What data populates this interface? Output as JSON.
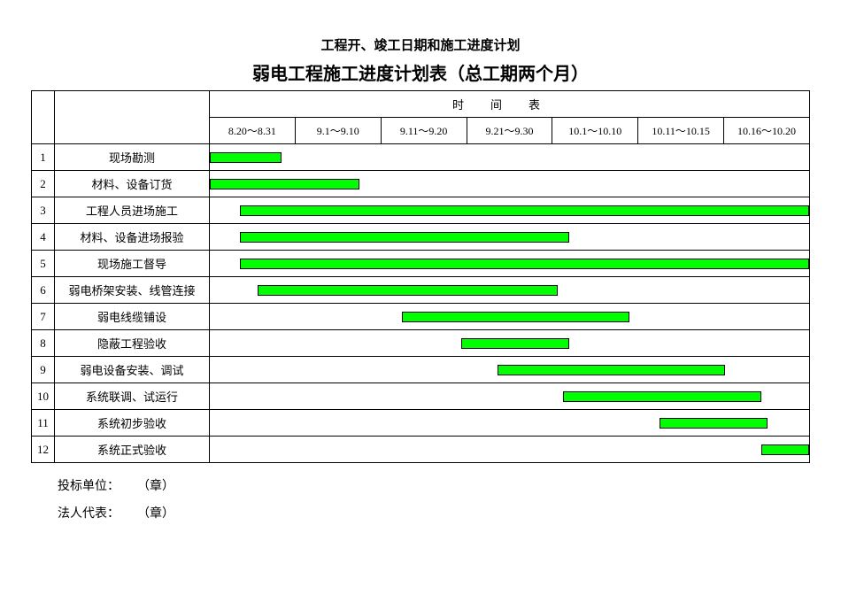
{
  "header": {
    "line1": "工程开、竣工日期和施工进度计划",
    "line2": "弱电工程施工进度计划表（总工期两个月）"
  },
  "timeline_header": "时间表",
  "columns": [
    "8.20～8.31",
    "9.1～9.10",
    "9.11～9.20",
    "9.21～9.30",
    "10.1～10.10",
    "10.11～10.15",
    "10.16～10.20"
  ],
  "rows": [
    {
      "num": "1",
      "name": "现场勘测",
      "bar_start_pct": 0,
      "bar_width_pct": 12
    },
    {
      "num": "2",
      "name": "材料、设备订货",
      "bar_start_pct": 0,
      "bar_width_pct": 25
    },
    {
      "num": "3",
      "name": "工程人员进场施工",
      "bar_start_pct": 5,
      "bar_width_pct": 95
    },
    {
      "num": "4",
      "name": "材料、设备进场报验",
      "bar_start_pct": 5,
      "bar_width_pct": 55
    },
    {
      "num": "5",
      "name": "现场施工督导",
      "bar_start_pct": 5,
      "bar_width_pct": 95
    },
    {
      "num": "6",
      "name": "弱电桥架安装、线管连接",
      "bar_start_pct": 8,
      "bar_width_pct": 50
    },
    {
      "num": "7",
      "name": "弱电线缆铺设",
      "bar_start_pct": 32,
      "bar_width_pct": 38
    },
    {
      "num": "8",
      "name": "隐蔽工程验收",
      "bar_start_pct": 42,
      "bar_width_pct": 18
    },
    {
      "num": "9",
      "name": "弱电设备安装、调试",
      "bar_start_pct": 48,
      "bar_width_pct": 38
    },
    {
      "num": "10",
      "name": "系统联调、试运行",
      "bar_start_pct": 59,
      "bar_width_pct": 33
    },
    {
      "num": "11",
      "name": "系统初步验收",
      "bar_start_pct": 75,
      "bar_width_pct": 18
    },
    {
      "num": "12",
      "name": "系统正式验收",
      "bar_start_pct": 92,
      "bar_width_pct": 8
    }
  ],
  "footer": {
    "bid_unit_label": "投标单位：",
    "legal_rep_label": "法人代表：",
    "seal": "（章）"
  },
  "colors": {
    "bar_fill": "#00ff00",
    "border": "#000000",
    "background": "#ffffff"
  }
}
